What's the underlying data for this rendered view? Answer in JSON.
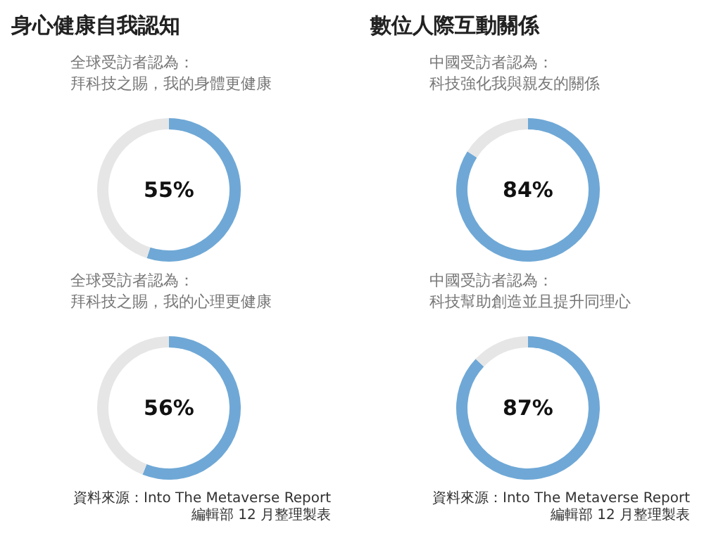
{
  "chart_data": [
    {
      "type": "donut",
      "title": "身心健康自我認知",
      "subtitle": "全球受訪者認為：拜科技之賜，我的身體更健康",
      "categories": [
        null,
        null
      ],
      "values": [
        55,
        45
      ],
      "colors": [
        "#6fa8d6",
        "#e6e6e6"
      ],
      "annotations": [
        "55%"
      ]
    },
    {
      "type": "donut",
      "title": "數位人際互動關係",
      "subtitle": "中國受訪者認為：科技強化我與親友的關係",
      "categories": [
        null,
        null
      ],
      "values": [
        84,
        16
      ],
      "colors": [
        "#6fa8d6",
        "#e6e6e6"
      ],
      "annotations": [
        "84%"
      ]
    },
    {
      "type": "donut",
      "subtitle": "全球受訪者認為：拜科技之賜，我的心理更健康",
      "categories": [
        null,
        null
      ],
      "values": [
        56,
        44
      ],
      "colors": [
        "#6fa8d6",
        "#e6e6e6"
      ],
      "annotations": [
        "56%",
        "資料來源：Into The Metaverse Report",
        "編輯部 12 月整理製表"
      ]
    },
    {
      "type": "donut",
      "subtitle": "中國受訪者認為：科技幫助創造並且提升同理心",
      "categories": [
        null,
        null
      ],
      "values": [
        87,
        13
      ],
      "colors": [
        "#6fa8d6",
        "#e6e6e6"
      ],
      "annotations": [
        "87%",
        "資料來源：Into The Metaverse Report",
        "編輯部 12 月整理製表"
      ]
    }
  ]
}
